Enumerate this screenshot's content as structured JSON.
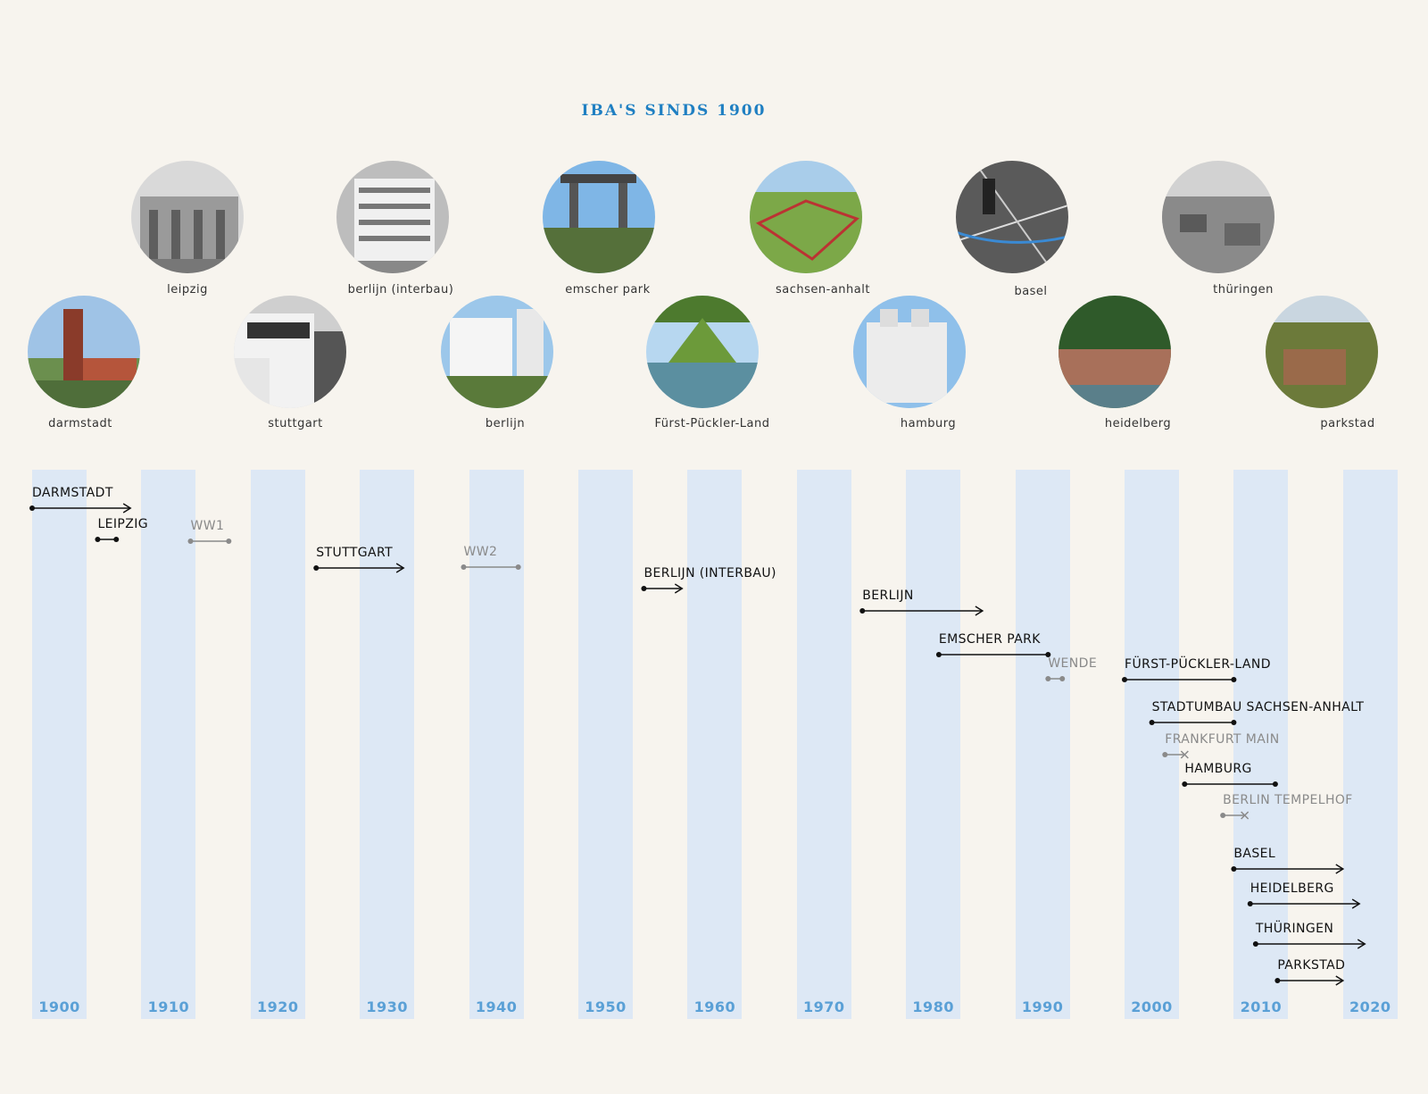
{
  "title": "IBA'S SINDS 1900",
  "photos": [
    {
      "id": "darmstadt",
      "caption": "darmstadt"
    },
    {
      "id": "leipzig",
      "caption": "leipzig"
    },
    {
      "id": "stuttgart",
      "caption": "stuttgart"
    },
    {
      "id": "berlin-interbau",
      "caption": "berlijn (interbau)"
    },
    {
      "id": "berlin",
      "caption": "berlijn"
    },
    {
      "id": "emscher",
      "caption": "emscher park"
    },
    {
      "id": "fuerst",
      "caption": "Fürst-Pückler-Land"
    },
    {
      "id": "sachsen",
      "caption": "sachsen-anhalt"
    },
    {
      "id": "hamburg",
      "caption": "hamburg"
    },
    {
      "id": "basel",
      "caption": "basel"
    },
    {
      "id": "heidelberg",
      "caption": "heidelberg"
    },
    {
      "id": "thueringen",
      "caption": "thüringen"
    },
    {
      "id": "parkstad",
      "caption": "parkstad"
    }
  ],
  "decades": [
    "1900",
    "1910",
    "1920",
    "1930",
    "1940",
    "1950",
    "1960",
    "1970",
    "1980",
    "1990",
    "2000",
    "2010",
    "2020"
  ],
  "timeline": [
    {
      "label": "DARMSTADT",
      "start": 1900,
      "end": 1909,
      "end_marker": "arrow",
      "style": "dark"
    },
    {
      "label": "LEIPZIG",
      "start": 1906,
      "end": 1907.7,
      "end_marker": "dot",
      "style": "dark"
    },
    {
      "label": "WW1",
      "start": 1914.5,
      "end": 1918,
      "end_marker": "dot",
      "style": "grey"
    },
    {
      "label": "STUTTGART",
      "start": 1926,
      "end": 1934,
      "end_marker": "arrow",
      "style": "dark"
    },
    {
      "label": "WW2",
      "start": 1939.5,
      "end": 1944.5,
      "end_marker": "dot",
      "style": "grey"
    },
    {
      "label": "BERLIJN (INTERBAU)",
      "start": 1956,
      "end": 1959.5,
      "end_marker": "arrow",
      "style": "dark"
    },
    {
      "label": "BERLIJN",
      "start": 1976,
      "end": 1987,
      "end_marker": "arrow",
      "style": "dark"
    },
    {
      "label": "EMSCHER PARK",
      "start": 1983,
      "end": 1993,
      "end_marker": "dot",
      "style": "dark"
    },
    {
      "label": "WENDE",
      "start": 1993,
      "end": 1994.3,
      "end_marker": "dot",
      "style": "grey"
    },
    {
      "label": "FÜRST-PÜCKLER-LAND",
      "start": 2000,
      "end": 2010,
      "end_marker": "dot",
      "style": "dark"
    },
    {
      "label": "STADTUMBAU SACHSEN-ANHALT",
      "start": 2002.5,
      "end": 2010,
      "end_marker": "dot",
      "style": "dark"
    },
    {
      "label": "FRANKFURT MAIN",
      "start": 2003.7,
      "end": 2005.5,
      "end_marker": "cross",
      "style": "grey"
    },
    {
      "label": "HAMBURG",
      "start": 2005.5,
      "end": 2013.8,
      "end_marker": "dot",
      "style": "dark"
    },
    {
      "label": "BERLIN TEMPELHOF",
      "start": 2009,
      "end": 2011,
      "end_marker": "cross",
      "style": "grey"
    },
    {
      "label": "BASEL",
      "start": 2010,
      "end": 2020,
      "end_marker": "arrow",
      "style": "dark"
    },
    {
      "label": "HEIDELBERG",
      "start": 2011.5,
      "end": 2021.5,
      "end_marker": "arrow",
      "style": "dark"
    },
    {
      "label": "THÜRINGEN",
      "start": 2012,
      "end": 2022,
      "end_marker": "arrow",
      "style": "dark"
    },
    {
      "label": "PARKSTAD",
      "start": 2014,
      "end": 2020,
      "end_marker": "arrow",
      "style": "dark"
    }
  ],
  "colors": {
    "accent": "#1f7fc2",
    "band": "#dde8f5",
    "year": "#5aa0d6",
    "dark": "#111111",
    "grey": "#8a8a8a",
    "background": "#f7f4ee"
  }
}
